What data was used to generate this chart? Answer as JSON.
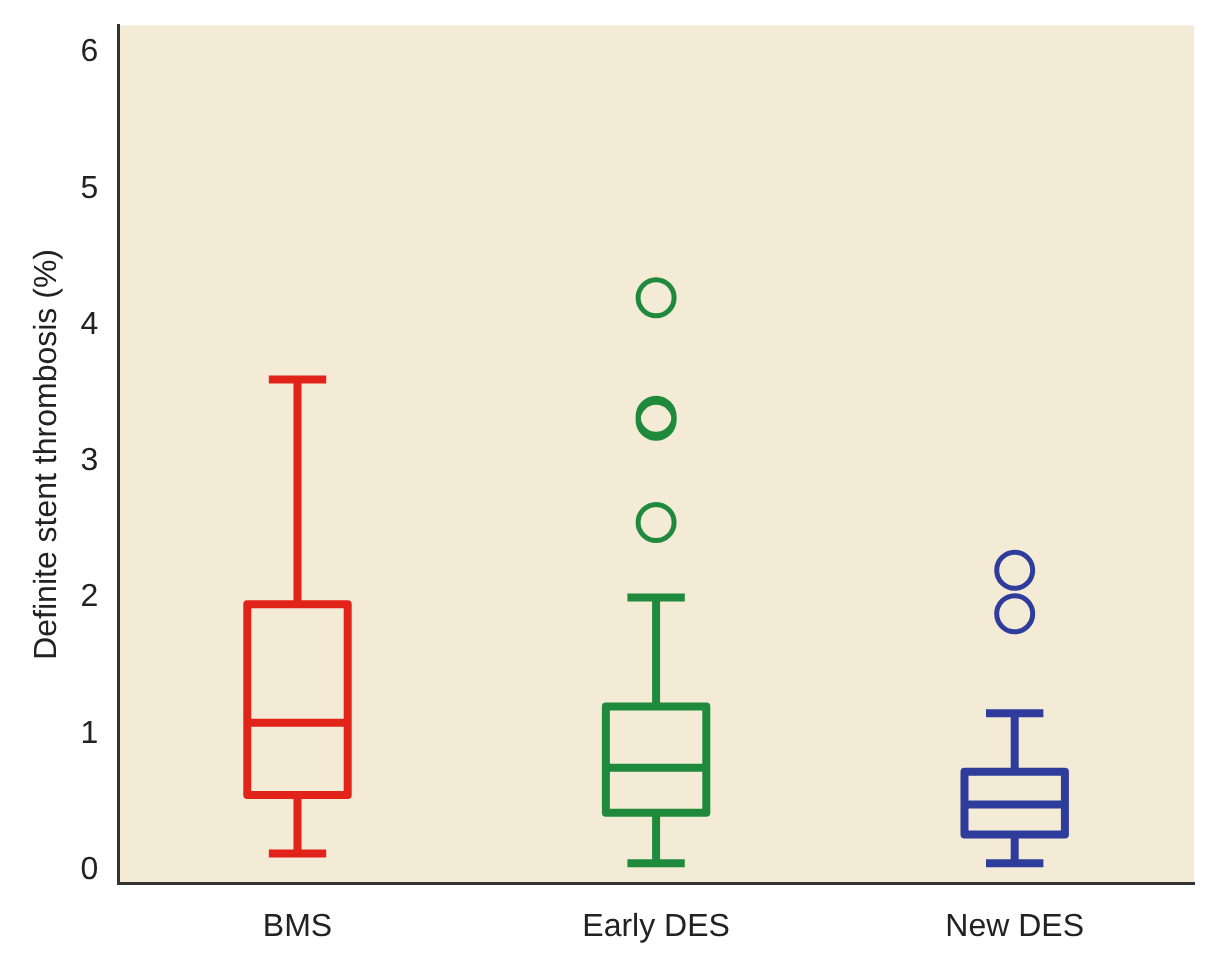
{
  "chart_data": {
    "type": "box",
    "ylabel": "Definite stent thrombosis (%)",
    "categories": [
      "BMS",
      "Early DES",
      "New DES"
    ],
    "colors": [
      "#e2231a",
      "#1f8a3c",
      "#2e3d9c"
    ],
    "boxes": [
      {
        "low": 0.12,
        "q1": 0.55,
        "median": 1.08,
        "q3": 1.95,
        "high": 3.6
      },
      {
        "low": 0.05,
        "q1": 0.42,
        "median": 0.75,
        "q3": 1.2,
        "high": 2.0,
        "outliers": [
          4.2,
          3.3,
          3.33,
          2.55
        ]
      },
      {
        "low": 0.05,
        "q1": 0.26,
        "median": 0.48,
        "q3": 0.72,
        "high": 1.15,
        "outliers": [
          2.2,
          1.88
        ]
      }
    ],
    "ylim": [
      -0.1,
      6.2
    ],
    "yticks": [
      0,
      1,
      2,
      3,
      4,
      5,
      6
    ],
    "legend": false
  }
}
